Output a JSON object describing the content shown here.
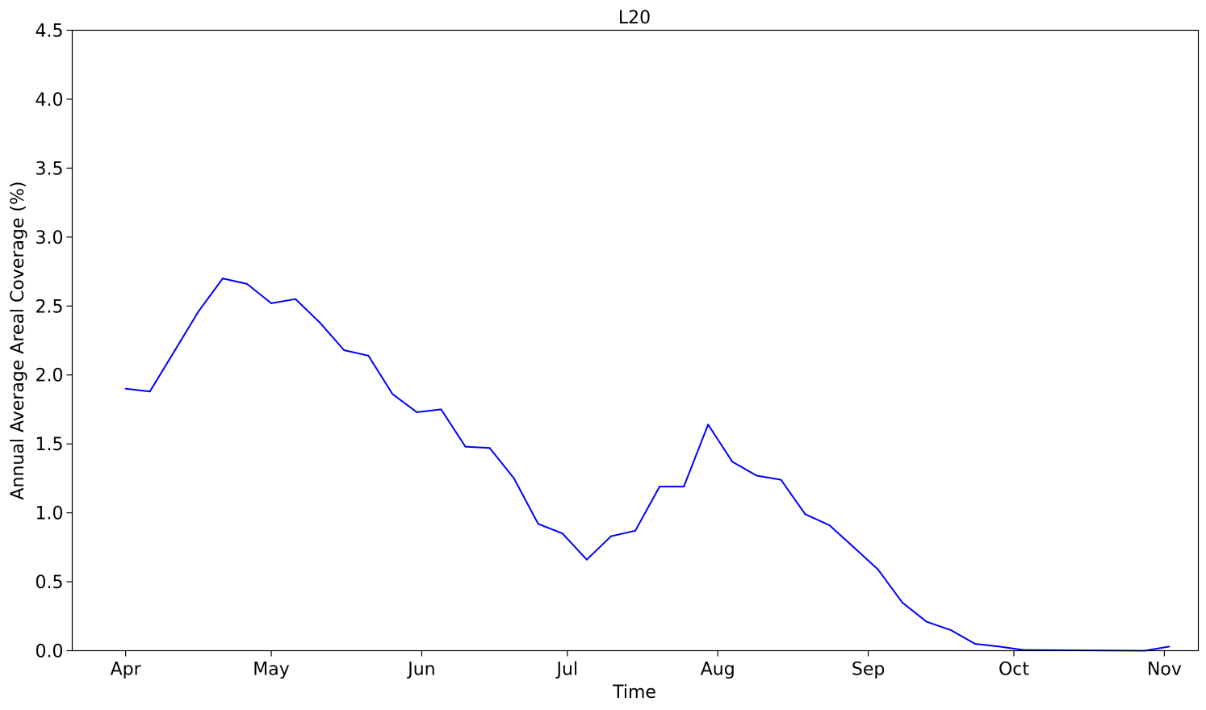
{
  "chart_data": {
    "type": "line",
    "title": "L20",
    "xlabel": "Time",
    "ylabel": "Annual Average Areal Coverage (%)",
    "ylim": [
      0,
      4.5
    ],
    "xlim": [
      "2000-03-21",
      "2000-11-08"
    ],
    "grid": false,
    "yticks": [
      {
        "value": 0,
        "label": "0.0"
      },
      {
        "value": 0.5,
        "label": "0.5"
      },
      {
        "value": 1,
        "label": "1.0"
      },
      {
        "value": 1.5,
        "label": "1.5"
      },
      {
        "value": 2,
        "label": "2.0"
      },
      {
        "value": 2.5,
        "label": "2.5"
      },
      {
        "value": 3,
        "label": "3.0"
      },
      {
        "value": 3.5,
        "label": "3.5"
      },
      {
        "value": 4,
        "label": "4.0"
      },
      {
        "value": 4.5,
        "label": "4.5"
      }
    ],
    "xticks": [
      {
        "value": "2000-04-01",
        "label": "Apr"
      },
      {
        "value": "2000-05-01",
        "label": "May"
      },
      {
        "value": "2000-06-01",
        "label": "Jun"
      },
      {
        "value": "2000-07-01",
        "label": "Jul"
      },
      {
        "value": "2000-08-01",
        "label": "Aug"
      },
      {
        "value": "2000-09-01",
        "label": "Sep"
      },
      {
        "value": "2000-10-01",
        "label": "Oct"
      },
      {
        "value": "2000-11-01",
        "label": "Nov"
      }
    ],
    "series": [
      {
        "color": "#0000ff",
        "points": [
          {
            "x": "2000-04-01",
            "y": 1.9
          },
          {
            "x": "2000-04-06",
            "y": 1.88
          },
          {
            "x": "2000-04-11",
            "y": 2.17
          },
          {
            "x": "2000-04-16",
            "y": 2.46
          },
          {
            "x": "2000-04-21",
            "y": 2.7
          },
          {
            "x": "2000-04-26",
            "y": 2.66
          },
          {
            "x": "2000-05-01",
            "y": 2.52
          },
          {
            "x": "2000-05-06",
            "y": 2.55
          },
          {
            "x": "2000-05-11",
            "y": 2.38
          },
          {
            "x": "2000-05-16",
            "y": 2.18
          },
          {
            "x": "2000-05-21",
            "y": 2.14
          },
          {
            "x": "2000-05-26",
            "y": 1.86
          },
          {
            "x": "2000-05-31",
            "y": 1.73
          },
          {
            "x": "2000-06-05",
            "y": 1.75
          },
          {
            "x": "2000-06-10",
            "y": 1.48
          },
          {
            "x": "2000-06-15",
            "y": 1.47
          },
          {
            "x": "2000-06-20",
            "y": 1.25
          },
          {
            "x": "2000-06-25",
            "y": 0.92
          },
          {
            "x": "2000-06-30",
            "y": 0.85
          },
          {
            "x": "2000-07-05",
            "y": 0.66
          },
          {
            "x": "2000-07-10",
            "y": 0.83
          },
          {
            "x": "2000-07-15",
            "y": 0.87
          },
          {
            "x": "2000-07-20",
            "y": 1.19
          },
          {
            "x": "2000-07-25",
            "y": 1.19
          },
          {
            "x": "2000-07-30",
            "y": 1.64
          },
          {
            "x": "2000-08-04",
            "y": 1.37
          },
          {
            "x": "2000-08-09",
            "y": 1.27
          },
          {
            "x": "2000-08-14",
            "y": 1.24
          },
          {
            "x": "2000-08-19",
            "y": 0.99
          },
          {
            "x": "2000-08-24",
            "y": 0.91
          },
          {
            "x": "2000-08-29",
            "y": 0.75
          },
          {
            "x": "2000-09-03",
            "y": 0.59
          },
          {
            "x": "2000-09-08",
            "y": 0.35
          },
          {
            "x": "2000-09-13",
            "y": 0.21
          },
          {
            "x": "2000-09-18",
            "y": 0.15
          },
          {
            "x": "2000-09-23",
            "y": 0.05
          },
          {
            "x": "2000-09-28",
            "y": 0.03
          },
          {
            "x": "2000-10-03",
            "y": 0.005
          },
          {
            "x": "2000-10-28",
            "y": 0.0
          },
          {
            "x": "2000-11-02",
            "y": 0.03
          }
        ]
      }
    ]
  }
}
